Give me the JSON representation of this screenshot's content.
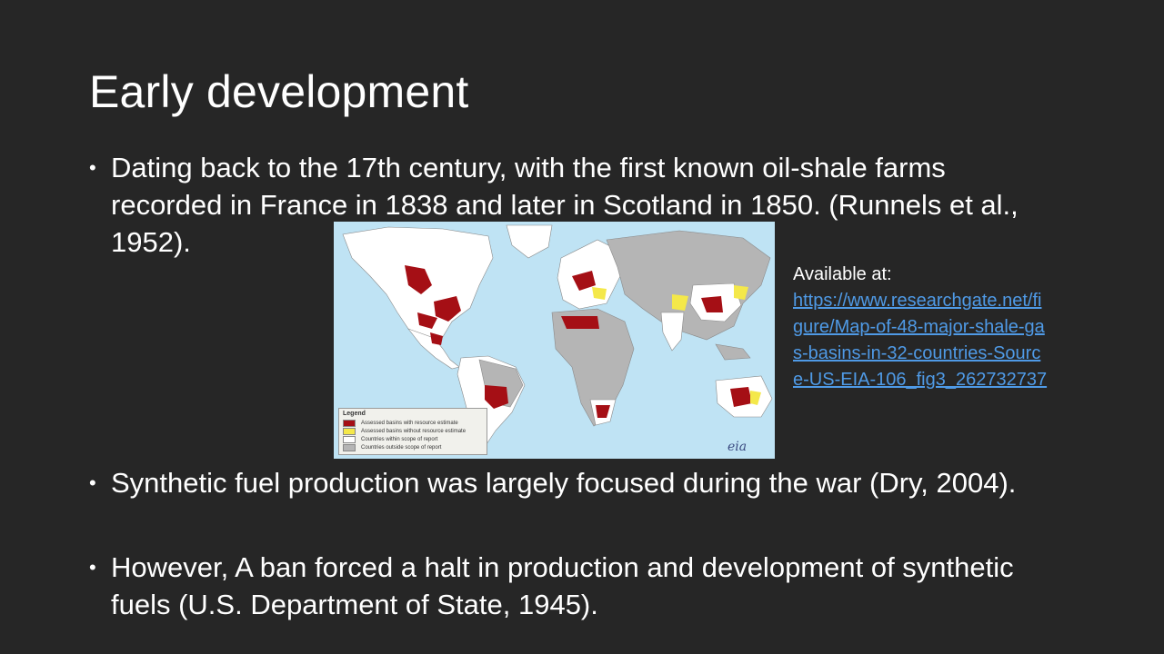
{
  "slide": {
    "title": "Early development",
    "bullets": [
      "Dating back to the 17th century, with the first known oil-shale farms recorded in France in 1838 and later in Scotland in 1850. (Runnels et al., 1952).",
      "Synthetic fuel production was largely focused during the war (Dry, 2004).",
      "However, A ban forced a halt in production and development of synthetic fuels (U.S. Department of State, 1945)."
    ],
    "bullet_glyph": "•"
  },
  "source": {
    "label": "Available at:",
    "url": "https://www.researchgate.net/figure/Map-of-48-major-shale-gas-basins-in-32-countries-Source-US-EIA-106_fig3_262732737"
  },
  "map": {
    "legend_title": "Legend",
    "legend_items": [
      {
        "label": "Assessed basins with resource estimate",
        "color": "#a50f15"
      },
      {
        "label": "Assessed basins without resource estimate",
        "color": "#f4e84a"
      },
      {
        "label": "Countries within scope of report",
        "color": "#ffffff"
      },
      {
        "label": "Countries outside scope of report",
        "color": "#b5b5b5"
      }
    ],
    "logo": "eia",
    "colors": {
      "ocean": "#bfe3f4",
      "in_scope": "#ffffff",
      "out_scope": "#b5b5b5",
      "basin": "#a50f15",
      "basin_noest": "#f4e84a"
    }
  }
}
